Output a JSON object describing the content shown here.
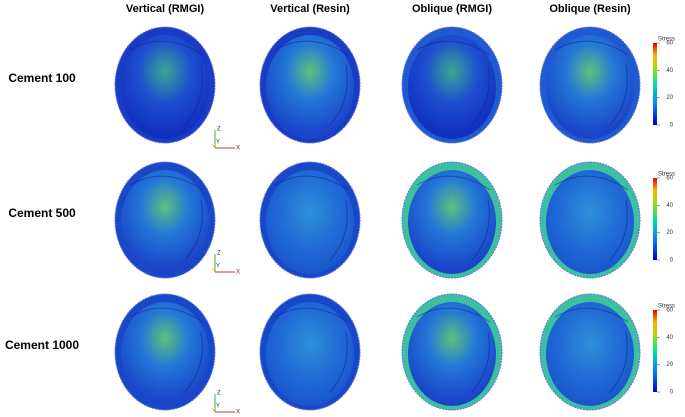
{
  "columns": [
    "Vertical (RMGI)",
    "Vertical (Resin)",
    "Oblique (RMGI)",
    "Oblique (Resin)"
  ],
  "rows": [
    {
      "label": "Cement 100",
      "colorbar": {
        "title": "Stress",
        "ticks": [
          0,
          20,
          40,
          60
        ]
      }
    },
    {
      "label": "Cement 500",
      "colorbar": {
        "title": "Stress",
        "ticks": [
          0,
          20,
          40,
          60
        ]
      }
    },
    {
      "label": "Cement 1000",
      "colorbar": {
        "title": "Stress",
        "ticks": [
          0,
          20,
          40,
          60
        ]
      }
    }
  ],
  "axis_triad": {
    "z": "Z",
    "y": "Y",
    "x": "X"
  }
}
